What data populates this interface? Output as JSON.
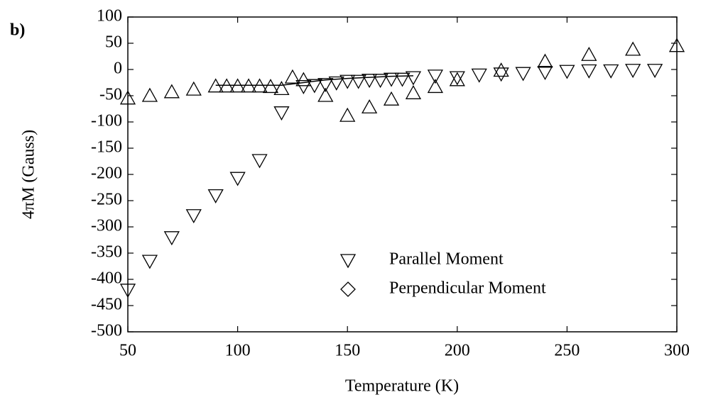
{
  "chart_data": {
    "type": "scatter",
    "annotation": "b)",
    "xlabel": "Temperature (K)",
    "ylabel": "4πM (Gauss)",
    "xlim": [
      50,
      300
    ],
    "xticks": [
      50,
      100,
      150,
      200,
      250,
      300
    ],
    "ylim": [
      -500,
      100
    ],
    "yticks": [
      -500,
      -450,
      -400,
      -350,
      -300,
      -250,
      -200,
      -150,
      -100,
      -50,
      0,
      50,
      100
    ],
    "grid": false,
    "series": [
      {
        "name": "Parallel Moment",
        "color": "#000000",
        "marker": "triangle-down",
        "legend_marker": "triangle-down",
        "x": [
          50,
          60,
          70,
          80,
          90,
          100,
          110,
          120,
          130,
          135,
          140,
          145,
          150,
          155,
          160,
          165,
          170,
          175,
          180,
          190,
          200,
          210,
          220,
          230,
          240,
          250,
          260,
          270,
          280,
          290
        ],
        "values": [
          -420,
          -365,
          -320,
          -278,
          -240,
          -207,
          -173,
          -82,
          -32,
          -30,
          -28,
          -25,
          -22,
          -22,
          -20,
          -20,
          -18,
          -18,
          -15,
          -12,
          -15,
          -10,
          -8,
          -7,
          -5,
          -3,
          -2,
          -2,
          -1,
          -1
        ]
      },
      {
        "name": "Perpendicular Moment",
        "color": "#000000",
        "marker": "triangle-up",
        "legend_marker": "diamond",
        "x": [
          50,
          60,
          70,
          80,
          90,
          95,
          100,
          105,
          110,
          115,
          120,
          125,
          130,
          140,
          150,
          160,
          170,
          180,
          190,
          200,
          220,
          240,
          260,
          280,
          300
        ],
        "values": [
          -55,
          -50,
          -43,
          -38,
          -32,
          -32,
          -32,
          -32,
          -32,
          -33,
          -37,
          -15,
          -20,
          -50,
          -88,
          -72,
          -57,
          -45,
          -33,
          -20,
          -2,
          15,
          28,
          38,
          45
        ]
      }
    ],
    "curve": {
      "color": "#000000",
      "x": [
        90,
        100,
        110,
        120,
        130,
        140,
        150,
        160,
        170,
        180
      ],
      "values": [
        -30,
        -30,
        -30,
        -30,
        -25,
        -20,
        -17,
        -15,
        -13,
        -12
      ]
    }
  }
}
